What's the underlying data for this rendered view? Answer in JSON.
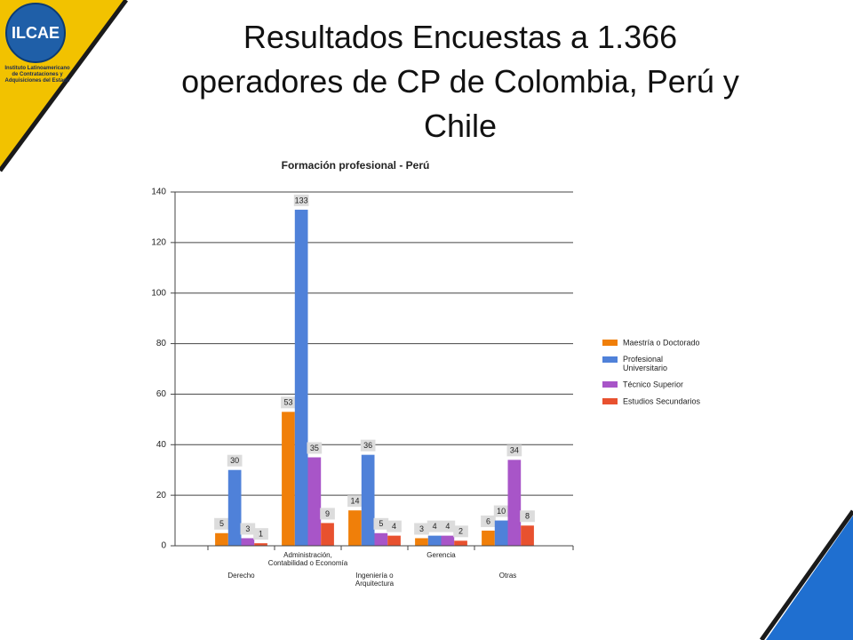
{
  "logo": {
    "name": "ILCAE",
    "caption": "Instituto Latinoamericano\nde Contrataciones y\nAdquisiciones del Estado"
  },
  "title": "Resultados Encuestas a 1.366\noperadores de CP de Colombia, Perú y\nChile",
  "chart_data": {
    "type": "bar",
    "title": "Formación profesional - Perú",
    "categories": [
      "Derecho",
      "Administración,\nContabilidad o Economía",
      "Ingeniería o\nArquitectura",
      "Gerencia",
      "Otras"
    ],
    "series": [
      {
        "name": "Maestría o Doctorado",
        "color": "#f07f09",
        "values": [
          5,
          53,
          14,
          3,
          6
        ]
      },
      {
        "name": "Profesional\nUniversitario",
        "color": "#4f81d9",
        "values": [
          30,
          133,
          36,
          4,
          10
        ]
      },
      {
        "name": "Técnico Superior",
        "color": "#a855c8",
        "values": [
          3,
          35,
          5,
          4,
          34
        ]
      },
      {
        "name": "Estudios Secundarios",
        "color": "#e8512f",
        "values": [
          1,
          9,
          4,
          2,
          8
        ]
      }
    ],
    "ylim": [
      0,
      140
    ],
    "yticks": [
      0,
      20,
      40,
      60,
      80,
      100,
      120,
      140
    ],
    "grid": true,
    "legend": "right"
  }
}
